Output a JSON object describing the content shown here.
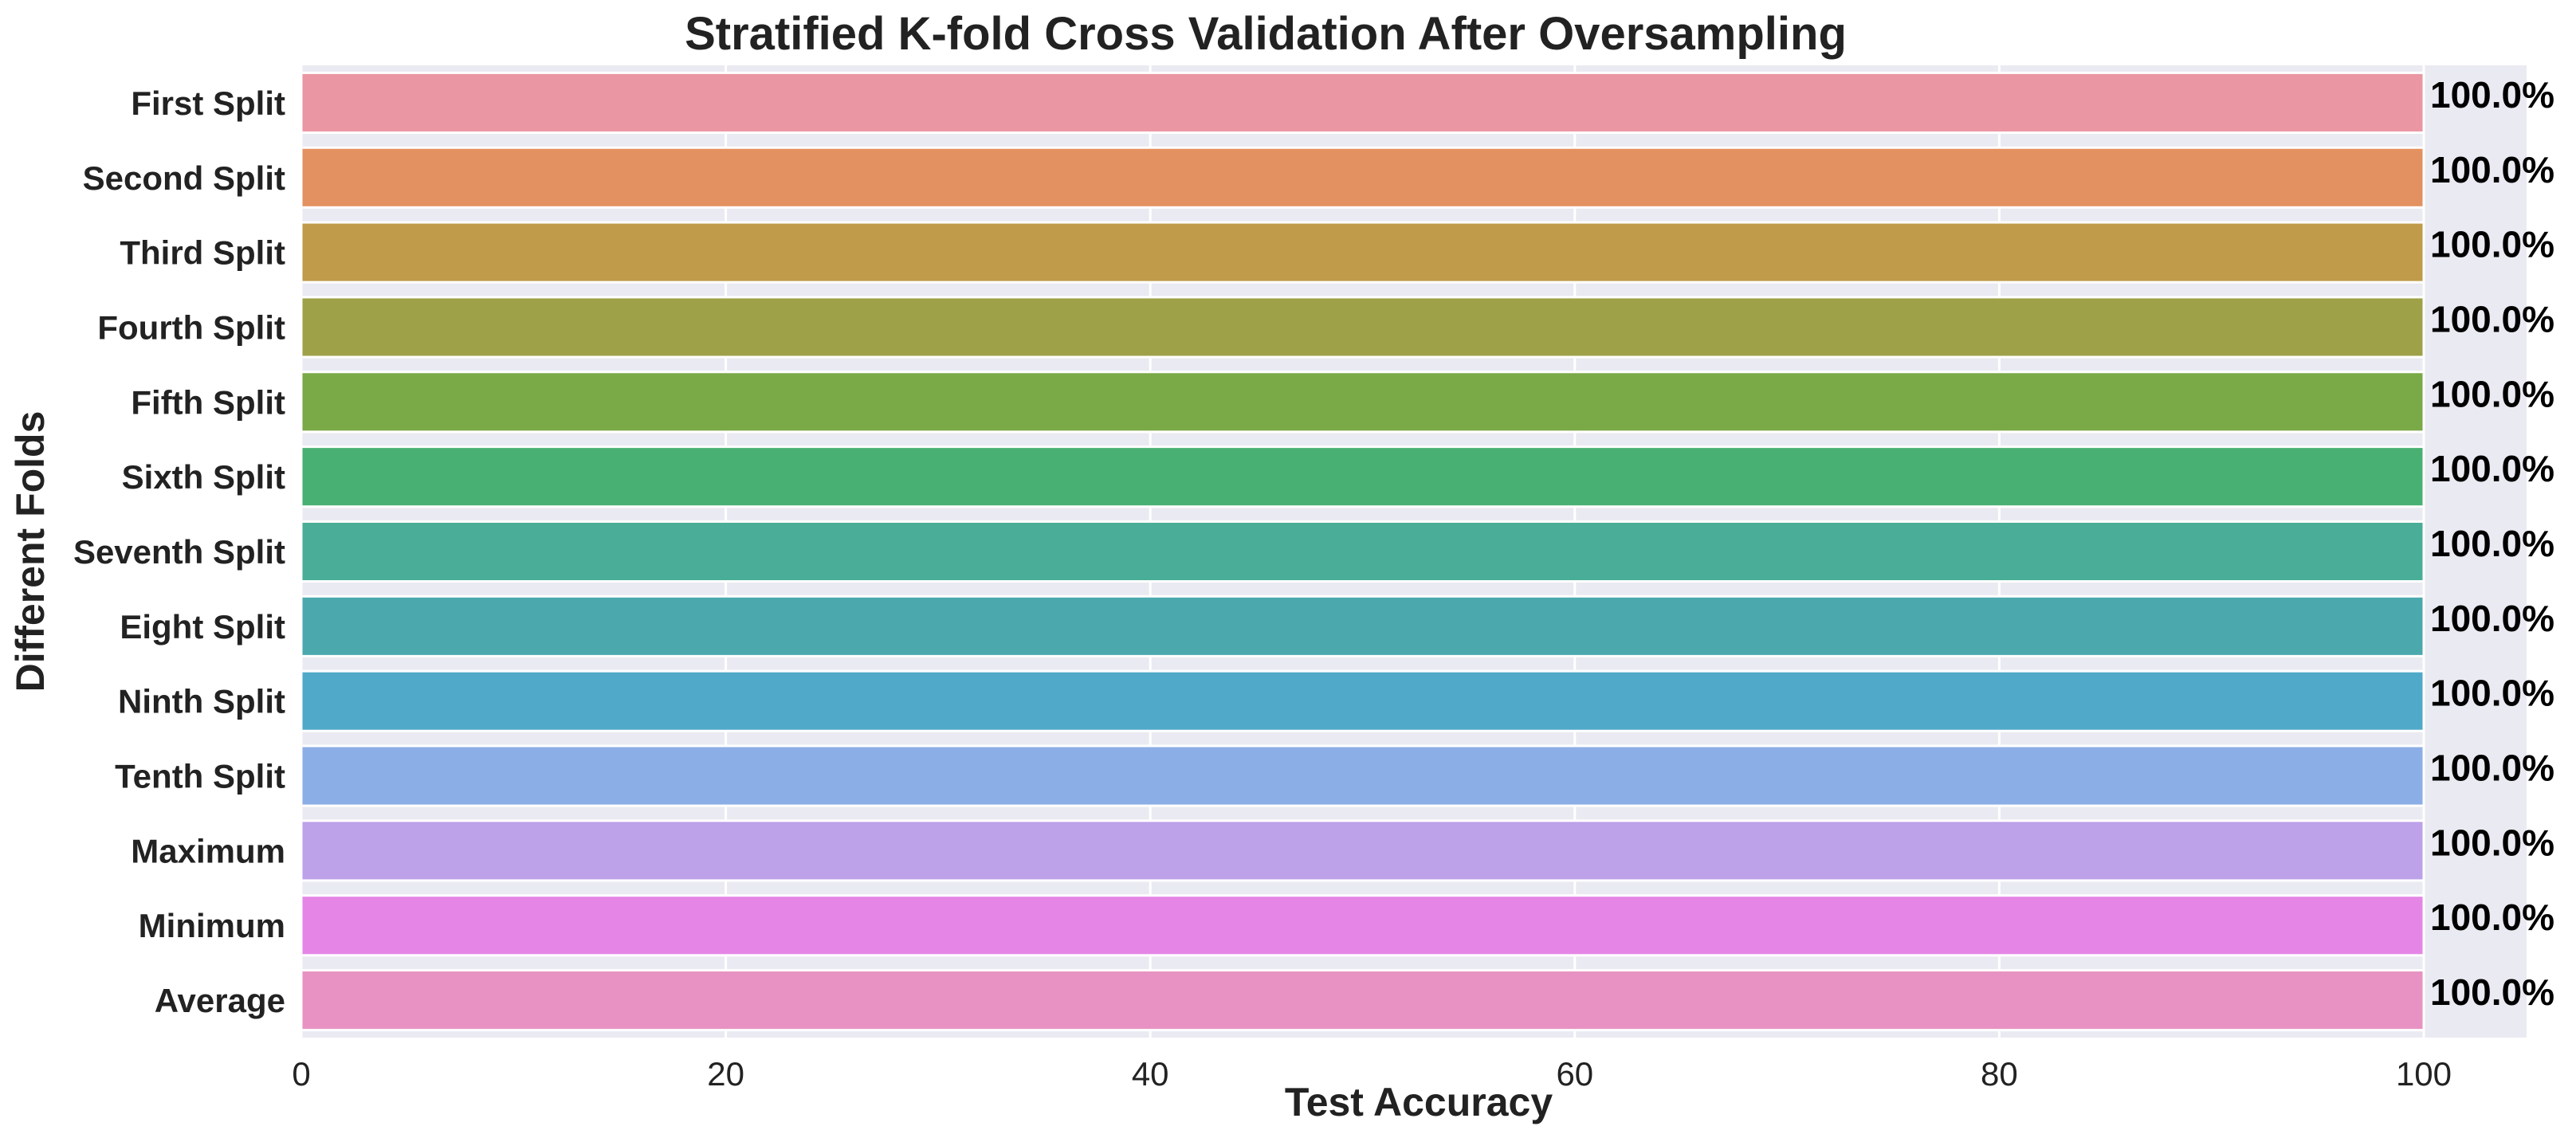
{
  "chart_data": {
    "type": "bar",
    "orientation": "horizontal",
    "title": "Stratified K-fold Cross Validation After Oversampling",
    "xlabel": "Test Accuracy",
    "ylabel": "Different Folds",
    "xlim": [
      0,
      105
    ],
    "xticks": [
      0,
      20,
      40,
      60,
      80,
      100
    ],
    "grid": true,
    "categories": [
      "First Split",
      "Second Split",
      "Third Split",
      "Fourth Split",
      "Fifth Split",
      "Sixth Split",
      "Seventh Split",
      "Eight Split",
      "Ninth Split",
      "Tenth Split",
      "Maximum",
      "Minimum",
      "Average"
    ],
    "values": [
      100,
      100,
      100,
      100,
      100,
      100,
      100,
      100,
      100,
      100,
      100,
      100,
      100
    ],
    "data_labels": [
      "100.0%",
      "100.0%",
      "100.0%",
      "100.0%",
      "100.0%",
      "100.0%",
      "100.0%",
      "100.0%",
      "100.0%",
      "100.0%",
      "100.0%",
      "100.0%",
      "100.0%"
    ],
    "colors": [
      "#ea96a3",
      "#e39160",
      "#c09b4a",
      "#9ea148",
      "#7aa947",
      "#48b072",
      "#4aad97",
      "#4ba9ae",
      "#51a9c9",
      "#8caee6",
      "#bda1e9",
      "#e586e6",
      "#e792c2"
    ],
    "background_color": "#eaeaf2",
    "grid_color": "#ffffff"
  }
}
